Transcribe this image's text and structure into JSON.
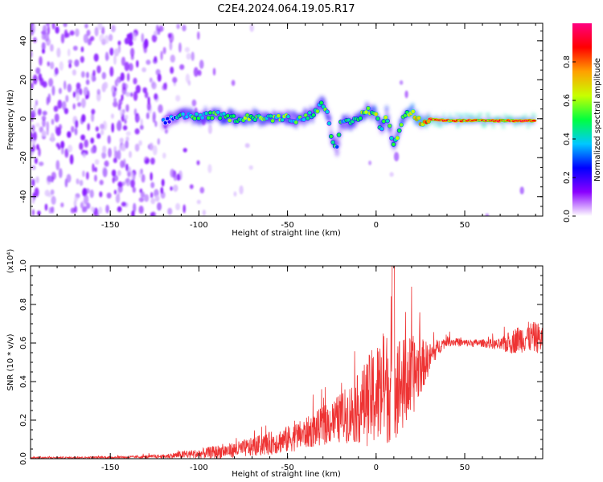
{
  "figure": {
    "title": "C2E4.2024.064.19.05.R17"
  },
  "chart_data": [
    {
      "type": "heatmap",
      "title": "C2E4.2024.064.19.05.R17",
      "xlabel": "Height of straight line (km)",
      "ylabel": "Frequency (Hz)",
      "xlim": [
        -195,
        94
      ],
      "ylim": [
        -50,
        49
      ],
      "x_ticks": [
        -150,
        -100,
        -50,
        0,
        50
      ],
      "y_ticks": [
        -40,
        -20,
        0,
        20,
        40
      ],
      "grid": false,
      "colorbar": {
        "label": "Normalized spectral amplitude",
        "range": [
          0.0,
          1.0
        ],
        "ticks": [
          0.0,
          0.2,
          0.4,
          0.6,
          0.8
        ],
        "colormap": [
          "#ffffff",
          "#8a00ff",
          "#0000ff",
          "#00c8ff",
          "#00ff40",
          "#c8ff00",
          "#ffa000",
          "#ff0000",
          "#ff0080"
        ]
      },
      "ridge": {
        "x": [
          -120,
          -110,
          -100,
          -90,
          -80,
          -70,
          -60,
          -50,
          -45,
          -40,
          -35,
          -30,
          -27,
          -25,
          -22,
          -20,
          -15,
          -10,
          -5,
          0,
          3,
          6,
          10,
          15,
          20,
          25,
          30,
          40,
          50,
          60,
          70,
          80,
          90
        ],
        "frequency": [
          -2,
          2,
          1,
          2,
          0,
          1,
          0,
          1,
          -1,
          1,
          3,
          8,
          2,
          -10,
          -15,
          -3,
          -2,
          0,
          5,
          2,
          -6,
          2,
          -14,
          0,
          4,
          -2,
          0,
          -1,
          -1,
          -1,
          -1,
          -1,
          -1
        ],
        "amplitude": [
          0.25,
          0.4,
          0.45,
          0.5,
          0.5,
          0.55,
          0.5,
          0.5,
          0.45,
          0.45,
          0.5,
          0.5,
          0.45,
          0.4,
          0.35,
          0.45,
          0.5,
          0.55,
          0.55,
          0.6,
          0.5,
          0.55,
          0.45,
          0.6,
          0.65,
          0.7,
          0.85,
          0.8,
          0.8,
          0.85,
          0.85,
          0.85,
          0.85
        ]
      }
    },
    {
      "type": "line",
      "xlabel": "Height of straight line (km)",
      "ylabel": "SNR (10 * v/v)",
      "y_multiplier": "(x10⁴)",
      "xlim": [
        -195,
        94
      ],
      "ylim": [
        0,
        1.0
      ],
      "x_ticks": [
        -150,
        -100,
        -50,
        0,
        50
      ],
      "y_ticks": [
        0.0,
        0.2,
        0.4,
        0.6,
        0.8,
        1.0
      ],
      "color": "#ee3333",
      "grid": false,
      "series": [
        {
          "x": [
            -195,
            -170,
            -140,
            -120,
            -110,
            -100,
            -90,
            -80,
            -70,
            -60,
            -50,
            -40,
            -30,
            -20,
            -10,
            0,
            5,
            10,
            15,
            20,
            25,
            30,
            35,
            40,
            50,
            60,
            70,
            75,
            80,
            85,
            90,
            94
          ],
          "mean": [
            0.005,
            0.006,
            0.008,
            0.012,
            0.02,
            0.025,
            0.035,
            0.045,
            0.06,
            0.08,
            0.1,
            0.13,
            0.17,
            0.21,
            0.26,
            0.33,
            0.36,
            0.4,
            0.38,
            0.42,
            0.48,
            0.52,
            0.58,
            0.61,
            0.6,
            0.6,
            0.59,
            0.6,
            0.62,
            0.63,
            0.63,
            0.62
          ],
          "spread": [
            0.004,
            0.004,
            0.006,
            0.01,
            0.02,
            0.025,
            0.035,
            0.04,
            0.05,
            0.06,
            0.07,
            0.08,
            0.1,
            0.13,
            0.18,
            0.28,
            0.3,
            0.3,
            0.25,
            0.22,
            0.15,
            0.08,
            0.04,
            0.025,
            0.02,
            0.02,
            0.03,
            0.06,
            0.07,
            0.08,
            0.08,
            0.08
          ]
        }
      ]
    }
  ]
}
